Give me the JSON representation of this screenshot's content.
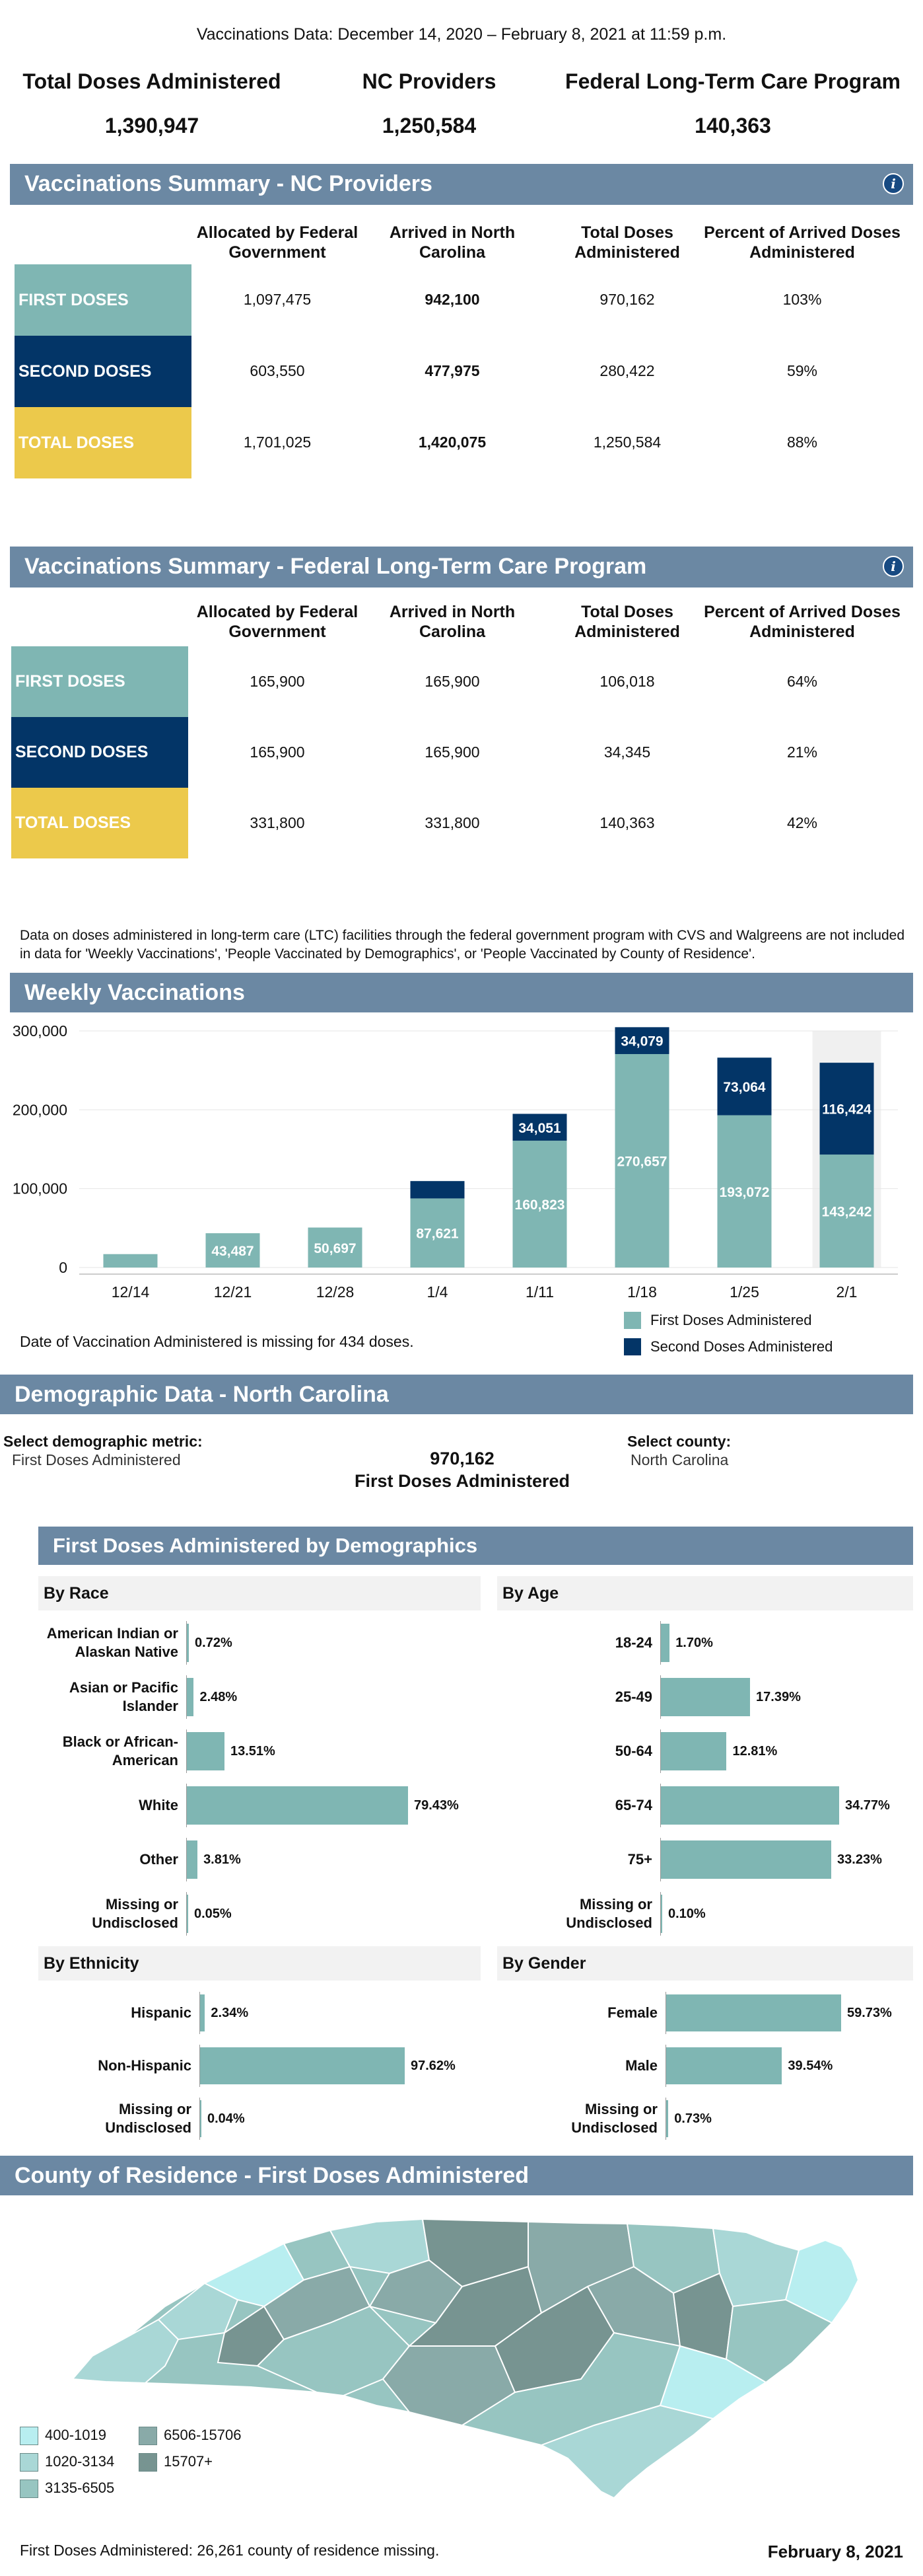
{
  "header": {
    "date_range": "Vaccinations Data: December 14, 2020 – February 8, 2021 at 11:59 p.m.",
    "kpis": [
      {
        "label": "Total Doses Administered",
        "value": "1,390,947"
      },
      {
        "label": "NC Providers",
        "value": "1,250,584"
      },
      {
        "label": "Federal Long-Term Care Program",
        "value": "140,363"
      }
    ]
  },
  "nc_summary": {
    "title": "Vaccinations Summary - NC Providers",
    "info_icon": "info-icon",
    "columns": [
      "Allocated by Federal Government",
      "Arrived in North Carolina",
      "Total Doses Administered",
      "Percent of Arrived Doses Administered"
    ],
    "rows": [
      {
        "label": "FIRST DOSES",
        "color": "#7fb6b3",
        "values": [
          "1,097,475",
          "942,100",
          "970,162",
          "103%"
        ]
      },
      {
        "label": "SECOND DOSES",
        "color": "#033567",
        "values": [
          "603,550",
          "477,975",
          "280,422",
          "59%"
        ]
      },
      {
        "label": "TOTAL DOSES",
        "color": "#ecc94b",
        "values": [
          "1,701,025",
          "1,420,075",
          "1,250,584",
          "88%"
        ]
      }
    ]
  },
  "ltc_summary": {
    "title": "Vaccinations Summary - Federal Long-Term Care Program",
    "info_icon": "info-icon",
    "columns": [
      "Allocated by Federal Government",
      "Arrived in North Carolina",
      "Total Doses Administered",
      "Percent of Arrived Doses Administered"
    ],
    "rows": [
      {
        "label": "FIRST DOSES",
        "color": "#7fb6b3",
        "values": [
          "165,900",
          "165,900",
          "106,018",
          "64%"
        ]
      },
      {
        "label": "SECOND DOSES",
        "color": "#033567",
        "values": [
          "165,900",
          "165,900",
          "34,345",
          "21%"
        ]
      },
      {
        "label": "TOTAL DOSES",
        "color": "#ecc94b",
        "values": [
          "331,800",
          "331,800",
          "140,363",
          "42%"
        ]
      }
    ],
    "note": "Data on doses administered in long-term care (LTC) facilities through the federal government program with CVS and Walgreens are not included in data for 'Weekly Vaccinations', 'People Vaccinated by Demographics', or 'People Vaccinated by County of Residence'."
  },
  "weekly": {
    "title": "Weekly Vaccinations",
    "missing_note": "Date of Vaccination Administered is missing for 434 doses.",
    "legend": [
      {
        "name": "First Doses Administered",
        "color": "#7fb6b3"
      },
      {
        "name": "Second Doses Administered",
        "color": "#033567"
      }
    ]
  },
  "chart_data": {
    "type": "bar",
    "stacked": true,
    "categories": [
      "12/14",
      "12/21",
      "12/28",
      "1/4",
      "1/11",
      "1/18",
      "1/25",
      "2/1"
    ],
    "series": [
      {
        "name": "First Doses Administered",
        "color": "#7fb6b3",
        "values": [
          17000,
          43487,
          50697,
          87621,
          160823,
          270657,
          193072,
          143242
        ],
        "labels": [
          "",
          "43,487",
          "50,697",
          "87,621",
          "160,823",
          "270,657",
          "193,072",
          "143,242"
        ]
      },
      {
        "name": "Second Doses Administered",
        "color": "#033567",
        "values": [
          0,
          0,
          0,
          22000,
          34051,
          34079,
          73064,
          116424
        ],
        "labels": [
          "",
          "",
          "",
          "",
          "34,051",
          "34,079",
          "73,064",
          "116,424"
        ]
      }
    ],
    "ylim": [
      0,
      300000
    ],
    "yticks": [
      "0",
      "100,000",
      "200,000",
      "300,000"
    ],
    "ytick_values": [
      0,
      100000,
      200000,
      300000
    ],
    "highlight_category": "2/1",
    "legend_position": "bottom-right"
  },
  "demographic": {
    "title": "Demographic Data - North Carolina",
    "metric_label": "Select demographic metric:",
    "metric_value": "First Doses Administered",
    "center_value": "970,162",
    "center_caption": "First Doses Administered",
    "county_label": "Select county:",
    "county_value": "North Carolina"
  },
  "demographics_panel": {
    "title": "First Doses Administered by Demographics",
    "race": {
      "title": "By Race",
      "items": [
        {
          "label": "American Indian or Alaskan Native",
          "value": "0.72%",
          "pct": 0.72
        },
        {
          "label": "Asian or Pacific Islander",
          "value": "2.48%",
          "pct": 2.48
        },
        {
          "label": "Black or African-American",
          "value": "13.51%",
          "pct": 13.51
        },
        {
          "label": "White",
          "value": "79.43%",
          "pct": 79.43
        },
        {
          "label": "Other",
          "value": "3.81%",
          "pct": 3.81
        },
        {
          "label": "Missing or Undisclosed",
          "value": "0.05%",
          "pct": 0.05
        }
      ]
    },
    "age": {
      "title": "By Age",
      "items": [
        {
          "label": "18-24",
          "value": "1.70%",
          "pct": 1.7
        },
        {
          "label": "25-49",
          "value": "17.39%",
          "pct": 17.39
        },
        {
          "label": "50-64",
          "value": "12.81%",
          "pct": 12.81
        },
        {
          "label": "65-74",
          "value": "34.77%",
          "pct": 34.77
        },
        {
          "label": "75+",
          "value": "33.23%",
          "pct": 33.23
        },
        {
          "label": "Missing or Undisclosed",
          "value": "0.10%",
          "pct": 0.1
        }
      ]
    },
    "ethnicity": {
      "title": "By Ethnicity",
      "items": [
        {
          "label": "Hispanic",
          "value": "2.34%",
          "pct": 2.34
        },
        {
          "label": "Non-Hispanic",
          "value": "97.62%",
          "pct": 97.62
        },
        {
          "label": "Missing or Undisclosed",
          "value": "0.04%",
          "pct": 0.04
        }
      ]
    },
    "gender": {
      "title": "By Gender",
      "items": [
        {
          "label": "Female",
          "value": "59.73%",
          "pct": 59.73
        },
        {
          "label": "Male",
          "value": "39.54%",
          "pct": 39.54
        },
        {
          "label": "Missing or Undisclosed",
          "value": "0.73%",
          "pct": 0.73
        }
      ]
    }
  },
  "county_map": {
    "title": "County of Residence - First Doses Administered",
    "legend": [
      {
        "label": "400-1019",
        "color": "#b8eef0"
      },
      {
        "label": "1020-3134",
        "color": "#a9d7d6"
      },
      {
        "label": "3135-6505",
        "color": "#97c5c1"
      },
      {
        "label": "6506-15706",
        "color": "#89aaa8"
      },
      {
        "label": "15707+",
        "color": "#779491"
      }
    ],
    "footnote": "First Doses Administered: 26,261 county of residence missing.",
    "date": "February 8, 2021"
  }
}
